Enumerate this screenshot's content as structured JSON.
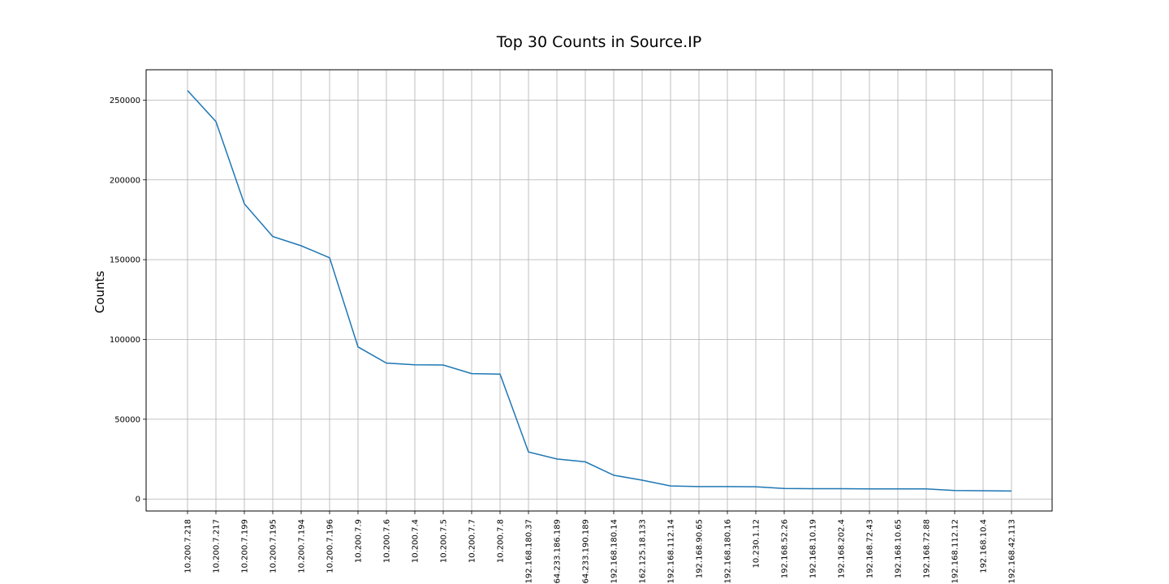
{
  "chart_data": {
    "type": "line",
    "title": "Top 30 Counts in Source.IP",
    "xlabel": "",
    "ylabel": "Counts",
    "ylim": [
      -7500,
      269000
    ],
    "yticks": [
      0,
      50000,
      100000,
      150000,
      200000,
      250000
    ],
    "ytick_labels": [
      "0",
      "50000",
      "100000",
      "150000",
      "200000",
      "250000"
    ],
    "grid": true,
    "line_color": "#1f77b4",
    "categories": [
      "10.200.7.218",
      "10.200.7.217",
      "10.200.7.199",
      "10.200.7.195",
      "10.200.7.194",
      "10.200.7.196",
      "10.200.7.9",
      "10.200.7.6",
      "10.200.7.4",
      "10.200.7.5",
      "10.200.7.7",
      "10.200.7.8",
      "192.168.180.37",
      "64.233.186.189",
      "64.233.190.189",
      "192.168.180.14",
      "162.125.18.133",
      "192.168.112.14",
      "192.168.90.65",
      "192.168.180.16",
      "10.230.1.12",
      "192.168.52.26",
      "192.168.10.19",
      "192.168.202.4",
      "192.168.72.43",
      "192.168.10.65",
      "192.168.72.88",
      "192.168.112.12",
      "192.168.10.4",
      "192.168.42.113"
    ],
    "values": [
      256000,
      236500,
      185000,
      164500,
      158700,
      151200,
      95300,
      85200,
      84100,
      84000,
      78600,
      78300,
      29500,
      25100,
      23300,
      14900,
      11800,
      8200,
      7800,
      7800,
      7700,
      6600,
      6500,
      6500,
      6400,
      6300,
      6300,
      5300,
      5200,
      5000
    ]
  }
}
